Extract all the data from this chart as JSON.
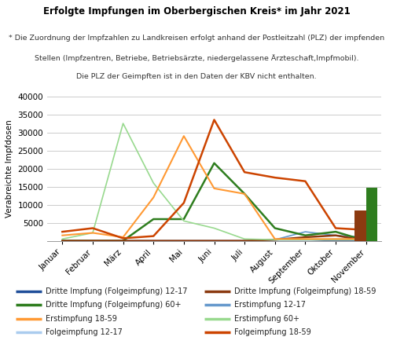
{
  "title": "Erfolgte Impfungen im Oberbergischen Kreis* im Jahr 2021",
  "subtitle_line1": "* Die Zuordnung der Impfzahlen zu Landkreisen erfolgt anhand der Postleitzahl (PLZ) der impfenden",
  "subtitle_line2": "Stellen (Impfzentren, Betriebe, Betriebsärzte, niedergelassene Ärzteschaft,Impfmobil).",
  "subtitle_line3": "Die PLZ der Geimpften ist in den Daten der KBV nicht enthalten.",
  "ylabel": "Verabreichte Impfdosen",
  "months": [
    "Januar",
    "Februar",
    "März",
    "April",
    "Mai",
    "Juni",
    "Juli",
    "August",
    "September",
    "Oktober",
    "November"
  ],
  "series": {
    "Erstimpfung 60+": {
      "color": "#98d98e",
      "linewidth": 1.2,
      "values": [
        500,
        2200,
        32500,
        16000,
        5500,
        3500,
        500,
        300,
        300,
        300,
        300
      ]
    },
    "Erstimpfung 18-59": {
      "color": "#ff9933",
      "linewidth": 1.5,
      "values": [
        1500,
        2200,
        1000,
        12000,
        29000,
        14500,
        13000,
        500,
        500,
        500,
        500
      ]
    },
    "Folgeimpfung 18-59": {
      "color": "#cc4400",
      "linewidth": 1.8,
      "values": [
        2500,
        3500,
        700,
        1300,
        10500,
        33500,
        19000,
        17500,
        16500,
        3500,
        3000
      ]
    },
    "Dritte Impfung (Folgeimpfung) 60+": {
      "color": "#2e7d1e",
      "linewidth": 1.8,
      "values": [
        0,
        0,
        0,
        6000,
        6000,
        21500,
        13000,
        3500,
        1500,
        2500,
        0
      ],
      "bar_value": 14800
    },
    "Dritte Impfung (Folgeimpfung) 18-59": {
      "color": "#8B3A10",
      "linewidth": 1.8,
      "values": [
        0,
        0,
        0,
        0,
        0,
        0,
        0,
        300,
        1000,
        1500,
        0
      ],
      "bar_value": 8500
    },
    "Erstimpfung 12-17": {
      "color": "#6699cc",
      "linewidth": 1.2,
      "values": [
        0,
        0,
        0,
        0,
        0,
        0,
        0,
        300,
        2500,
        1500,
        1000
      ]
    },
    "Folgeimpfung 12-17": {
      "color": "#aaccee",
      "linewidth": 1.2,
      "values": [
        0,
        0,
        0,
        0,
        0,
        0,
        0,
        0,
        0,
        500,
        500
      ]
    },
    "Dritte Impfung (Folgeimpfung) 12-17": {
      "color": "#1f4e99",
      "linewidth": 1.8,
      "values": [
        0,
        0,
        0,
        0,
        0,
        0,
        0,
        0,
        0,
        0,
        0
      ]
    }
  },
  "ylim": [
    0,
    40000
  ],
  "yticks": [
    0,
    5000,
    10000,
    15000,
    20000,
    25000,
    30000,
    35000,
    40000
  ],
  "background_color": "#ffffff",
  "grid_color": "#cccccc",
  "title_fontsize": 8.5,
  "subtitle_fontsize": 6.8,
  "axis_fontsize": 7.5,
  "ylabel_fontsize": 7.5,
  "legend_fontsize": 7.0,
  "legend_entries_left": [
    [
      "Dritte Impfung (Folgeimpfung) 12-17",
      "#1f4e99"
    ],
    [
      "Dritte Impfung (Folgeimpfung) 60+",
      "#2e7d1e"
    ],
    [
      "Erstimpfung 18-59",
      "#ff9933"
    ],
    [
      "Folgeimpfung 12-17",
      "#aaccee"
    ]
  ],
  "legend_entries_right": [
    [
      "Dritte Impfung (Folgeimpfung) 18-59",
      "#8B3A10"
    ],
    [
      "Erstimpfung 12-17",
      "#6699cc"
    ],
    [
      "Erstimpfung 60+",
      "#98d98e"
    ],
    [
      "Folgeimpfung 18-59",
      "#cc4400"
    ]
  ]
}
